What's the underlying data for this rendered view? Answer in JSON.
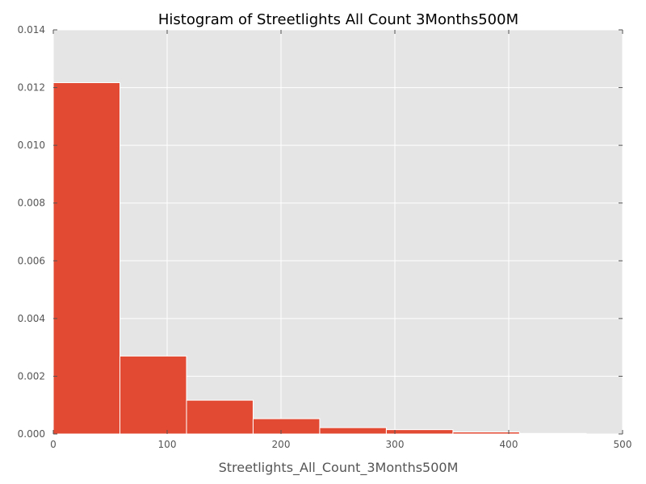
{
  "chart_data": {
    "type": "bar",
    "histogram": true,
    "title": "Histogram of Streetlights All Count 3Months500M",
    "xlabel": "Streetlights_All_Count_3Months500M",
    "ylabel": "",
    "xlim": [
      0,
      500
    ],
    "ylim": [
      0,
      0.014
    ],
    "xticks": [
      "0",
      "100",
      "200",
      "300",
      "400",
      "500"
    ],
    "yticks": [
      "0.000",
      "0.002",
      "0.004",
      "0.006",
      "0.008",
      "0.010",
      "0.012",
      "0.014"
    ],
    "bins": [
      {
        "start": 0,
        "end": 58.5,
        "value": 0.01217
      },
      {
        "start": 58.5,
        "end": 117,
        "value": 0.0027
      },
      {
        "start": 117,
        "end": 175.5,
        "value": 0.00117
      },
      {
        "start": 175.5,
        "end": 234,
        "value": 0.00053
      },
      {
        "start": 234,
        "end": 292.5,
        "value": 0.00022
      },
      {
        "start": 292.5,
        "end": 351,
        "value": 0.00015
      },
      {
        "start": 351,
        "end": 409.5,
        "value": 7e-05
      },
      {
        "start": 409.5,
        "end": 468,
        "value": 2e-05
      }
    ],
    "grid": true,
    "colors": {
      "bar": "#E24A33",
      "background": "#E5E5E5",
      "grid": "#FFFFFF"
    }
  }
}
